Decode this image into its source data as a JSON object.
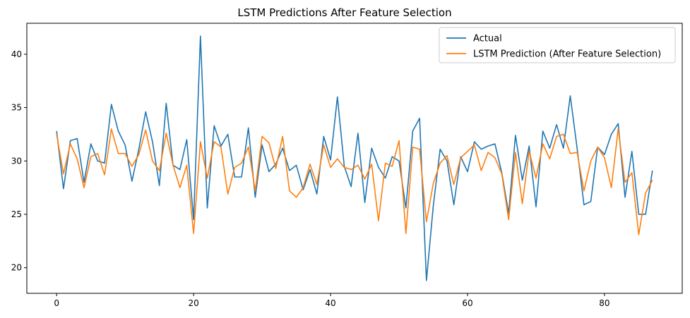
{
  "chart_data": {
    "type": "line",
    "title": "LSTM Predictions After Feature Selection",
    "xlabel": "",
    "ylabel": "",
    "xlim": [
      -4.35,
      91.35
    ],
    "ylim": [
      17.6,
      42.9
    ],
    "xticks": [
      0,
      20,
      40,
      60,
      80
    ],
    "yticks": [
      20,
      25,
      30,
      35,
      40
    ],
    "grid": false,
    "legend_position": "top-right",
    "series": [
      {
        "name": "Actual",
        "color": "#1f77b4",
        "values": [
          32.8,
          27.4,
          31.9,
          32.1,
          28.0,
          31.6,
          30.0,
          29.8,
          35.3,
          32.8,
          31.5,
          28.1,
          31.1,
          34.6,
          31.8,
          27.7,
          35.4,
          29.6,
          29.2,
          32.0,
          24.5,
          41.7,
          25.6,
          33.3,
          31.4,
          32.5,
          28.5,
          28.5,
          33.1,
          26.6,
          31.5,
          29.0,
          29.7,
          31.2,
          29.1,
          29.6,
          27.3,
          29.2,
          26.9,
          32.3,
          30.1,
          36.0,
          29.5,
          27.6,
          32.6,
          26.1,
          31.2,
          29.4,
          28.4,
          30.4,
          30.0,
          25.6,
          32.8,
          34.0,
          18.8,
          25.8,
          31.1,
          30.0,
          25.9,
          30.4,
          29.0,
          31.8,
          31.1,
          31.4,
          31.6,
          28.9,
          25.1,
          32.4,
          28.2,
          31.4,
          25.7,
          32.8,
          31.2,
          33.4,
          31.2,
          36.1,
          31.2,
          25.9,
          26.2,
          31.3,
          30.6,
          32.5,
          33.5,
          26.6,
          30.9,
          25.0,
          25.0,
          29.1
        ]
      },
      {
        "name": "LSTM Prediction (After Feature Selection)",
        "color": "#ff7f0e",
        "values": [
          32.5,
          28.8,
          31.6,
          30.2,
          27.5,
          30.4,
          30.7,
          28.7,
          33.0,
          30.7,
          30.7,
          29.5,
          30.6,
          32.9,
          30.0,
          29.1,
          32.6,
          29.6,
          27.5,
          29.6,
          23.2,
          31.8,
          28.4,
          31.8,
          31.3,
          26.9,
          29.4,
          29.8,
          31.3,
          27.2,
          32.3,
          31.7,
          29.3,
          32.3,
          27.2,
          26.6,
          27.5,
          29.7,
          27.8,
          31.5,
          29.4,
          30.2,
          29.4,
          29.2,
          29.6,
          28.3,
          29.7,
          24.4,
          29.8,
          29.5,
          31.9,
          23.2,
          31.3,
          31.1,
          24.3,
          27.9,
          29.8,
          30.5,
          27.8,
          30.3,
          30.9,
          31.5,
          29.1,
          30.8,
          30.3,
          28.8,
          24.5,
          30.8,
          26.0,
          30.9,
          28.4,
          31.6,
          30.2,
          32.3,
          32.5,
          30.7,
          30.8,
          27.2,
          30.0,
          31.3,
          30.3,
          27.5,
          33.0,
          28.0,
          28.9,
          23.1,
          27.0,
          28.2
        ]
      }
    ]
  }
}
